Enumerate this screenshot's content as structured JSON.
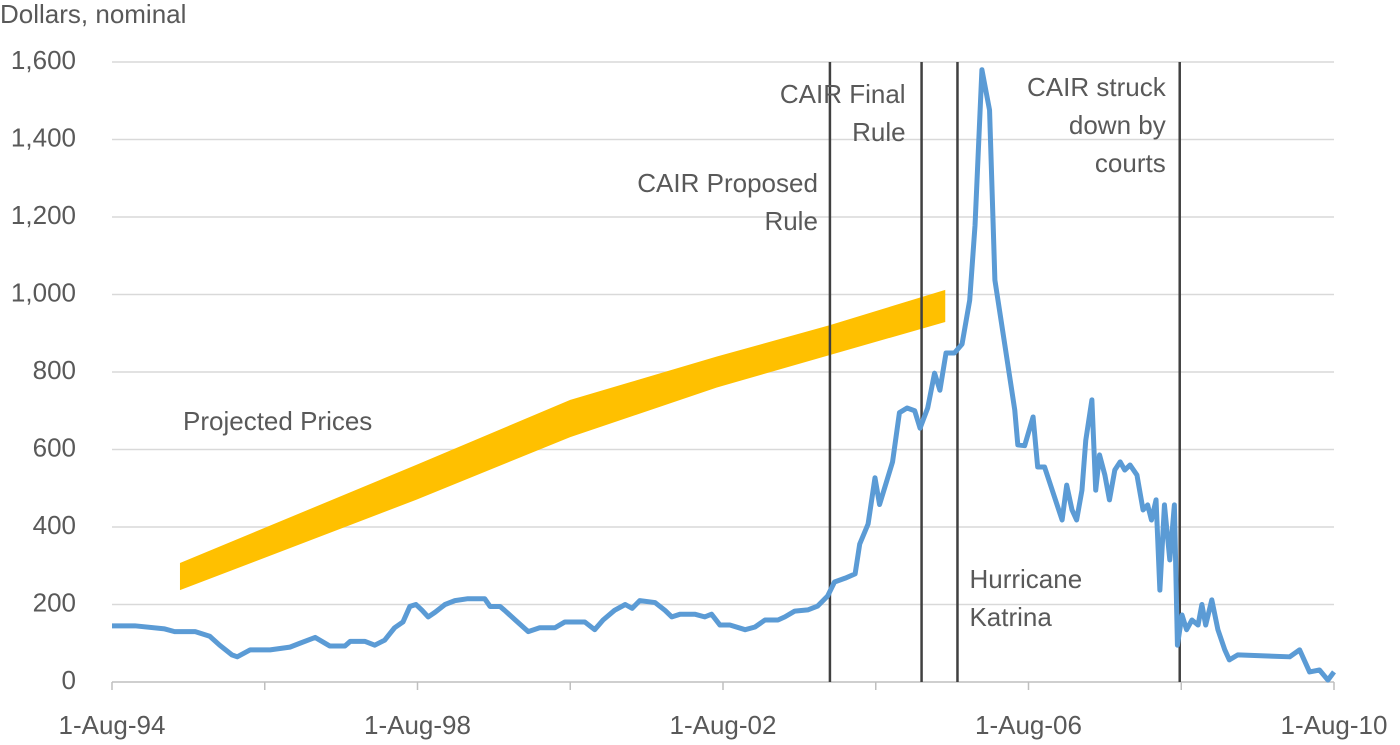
{
  "chart_data": {
    "type": "line",
    "y_axis_label": "Dollars, nominal",
    "xlim": [
      1994.58,
      2010.58
    ],
    "xticks": [
      {
        "value": 1994.58,
        "label": "1-Aug-94"
      },
      {
        "value": 1998.58,
        "label": "1-Aug-98"
      },
      {
        "value": 2002.58,
        "label": "1-Aug-02"
      },
      {
        "value": 2006.58,
        "label": "1-Aug-06"
      },
      {
        "value": 2010.58,
        "label": "1-Aug-10"
      }
    ],
    "xminor_ticks": [
      1996.58,
      2000.58,
      2004.58,
      2008.58
    ],
    "ylim": [
      0,
      1600
    ],
    "yticks": [
      0,
      200,
      400,
      600,
      800,
      {
        "value": 1000,
        "label": "1,000"
      },
      {
        "value": 1200,
        "label": "1,200"
      },
      {
        "value": 1400,
        "label": "1,400"
      },
      {
        "value": 1600,
        "label": "1,600"
      }
    ],
    "grid": true,
    "band": {
      "label": "Projected Prices",
      "color": "#ffc000",
      "x": [
        1995.47,
        1998.56,
        2000.58,
        2002.5,
        2003.98,
        2005.49
      ],
      "lower": [
        237,
        470,
        632,
        760,
        844,
        929
      ],
      "upper": [
        307,
        560,
        728,
        840,
        921,
        1012
      ]
    },
    "series": [
      {
        "color": "#5b9bd5",
        "x": [
          1994.58,
          1994.88,
          1995.27,
          1995.4,
          1995.67,
          1995.86,
          1995.99,
          1996.15,
          1996.22,
          1996.39,
          1996.65,
          1996.91,
          1997.04,
          1997.24,
          1997.43,
          1997.63,
          1997.7,
          1997.89,
          1998.02,
          1998.15,
          1998.28,
          1998.39,
          1998.48,
          1998.56,
          1998.64,
          1998.72,
          1998.81,
          1998.94,
          1999.07,
          1999.24,
          1999.46,
          1999.53,
          1999.66,
          1999.72,
          1999.86,
          2000.03,
          2000.18,
          2000.38,
          2000.51,
          2000.77,
          2000.9,
          2001.01,
          2001.16,
          2001.3,
          2001.39,
          2001.49,
          2001.69,
          2001.82,
          2001.91,
          2002.02,
          2002.21,
          2002.34,
          2002.43,
          2002.54,
          2002.67,
          2002.87,
          2003.0,
          2003.13,
          2003.3,
          2003.39,
          2003.52,
          2003.69,
          2003.82,
          2003.95,
          2004.04,
          2004.18,
          2004.31,
          2004.37,
          2004.48,
          2004.57,
          2004.63,
          2004.8,
          2004.89,
          2004.99,
          2005.09,
          2005.16,
          2005.26,
          2005.35,
          2005.42,
          2005.5,
          2005.61,
          2005.71,
          2005.81,
          2005.88,
          2005.97,
          2006.07,
          2006.14,
          2006.27,
          2006.4,
          2006.44,
          2006.53,
          2006.64,
          2006.7,
          2006.79,
          2007.02,
          2007.08,
          2007.15,
          2007.21,
          2007.28,
          2007.33,
          2007.41,
          2007.46,
          2007.51,
          2007.58,
          2007.64,
          2007.71,
          2007.78,
          2007.84,
          2007.91,
          2008.0,
          2008.08,
          2008.14,
          2008.19,
          2008.25,
          2008.3,
          2008.36,
          2008.43,
          2008.49,
          2008.53,
          2008.59,
          2008.65,
          2008.72,
          2008.8,
          2008.85,
          2008.9,
          2008.98,
          2009.06,
          2009.15,
          2009.21,
          2009.32,
          2010.0,
          2010.13,
          2010.26,
          2010.39,
          2010.5,
          2010.58
        ],
        "values": [
          145,
          145,
          137,
          130,
          130,
          118,
          95,
          70,
          65,
          83,
          83,
          90,
          100,
          115,
          93,
          93,
          105,
          105,
          95,
          108,
          140,
          155,
          195,
          200,
          185,
          168,
          180,
          200,
          210,
          215,
          215,
          195,
          195,
          185,
          160,
          130,
          140,
          140,
          155,
          155,
          135,
          160,
          185,
          200,
          190,
          210,
          205,
          185,
          168,
          175,
          175,
          168,
          175,
          147,
          147,
          135,
          142,
          160,
          160,
          168,
          183,
          186,
          196,
          222,
          258,
          268,
          279,
          356,
          408,
          527,
          458,
          568,
          695,
          707,
          700,
          655,
          707,
          797,
          753,
          849,
          849,
          872,
          985,
          1179,
          1580,
          1476,
          1037,
          870,
          702,
          612,
          610,
          684,
          555,
          555,
          418,
          508,
          444,
          418,
          495,
          624,
          728,
          495,
          586,
          534,
          470,
          547,
          568,
          547,
          560,
          534,
          444,
          457,
          418,
          470,
          237,
          457,
          315,
          457,
          95,
          173,
          135,
          160,
          147,
          200,
          147,
          212,
          135,
          83,
          57,
          70,
          65,
          83,
          26,
          31,
          5,
          26
        ]
      }
    ],
    "annotations": [
      {
        "x": 2003.98,
        "lines": [
          "CAIR Proposed",
          "Rule"
        ]
      },
      {
        "x": 2005.18,
        "lines": [
          "CAIR Final",
          "Rule"
        ]
      },
      {
        "x": 2005.65,
        "lines": [
          "Hurricane",
          "Katrina"
        ]
      },
      {
        "x": 2008.56,
        "lines": [
          "CAIR struck",
          "down by",
          "courts"
        ]
      }
    ]
  }
}
